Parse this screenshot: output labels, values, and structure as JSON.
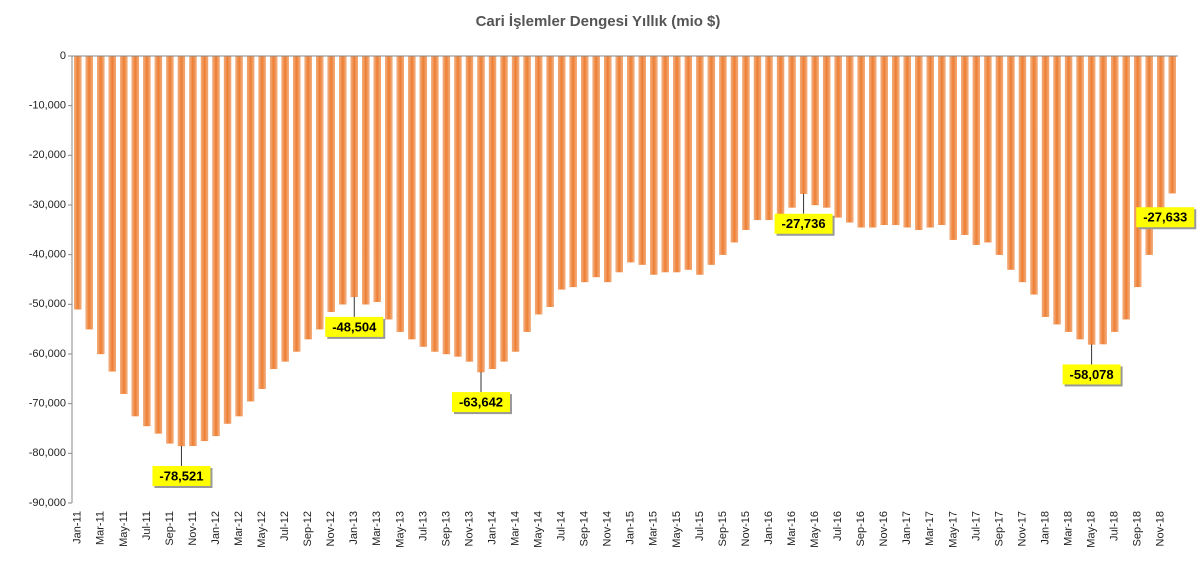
{
  "chart_data": {
    "type": "bar",
    "title": "Cari İşlemler Dengesi Yıllık (mio $)",
    "categories": [
      "Jan-11",
      null,
      "Mar-11",
      null,
      "May-11",
      null,
      "Jul-11",
      null,
      "Sep-11",
      null,
      "Nov-11",
      null,
      "Jan-12",
      null,
      "Mar-12",
      null,
      "May-12",
      null,
      "Jul-12",
      null,
      "Sep-12",
      null,
      "Nov-12",
      null,
      "Jan-13",
      null,
      "Mar-13",
      null,
      "May-13",
      null,
      "Jul-13",
      null,
      "Sep-13",
      null,
      "Nov-13",
      null,
      "Jan-14",
      null,
      "Mar-14",
      null,
      "May-14",
      null,
      "Jul-14",
      null,
      "Sep-14",
      null,
      "Nov-14",
      null,
      "Jan-15",
      null,
      "Mar-15",
      null,
      "May-15",
      null,
      "Jul-15",
      null,
      "Sep-15",
      null,
      "Nov-15",
      null,
      "Jan-16",
      null,
      "Mar-16",
      null,
      "May-16",
      null,
      "Jul-16",
      null,
      "Sep-16",
      null,
      "Nov-16",
      null,
      "Jan-17",
      null,
      "Mar-17",
      null,
      "May-17",
      null,
      "Jul-17",
      null,
      "Sep-17",
      null,
      "Nov-17",
      null,
      "Jan-18",
      null,
      "Mar-18",
      null,
      "May-18",
      null,
      "Jul-18",
      null,
      "Sep-18",
      null,
      "Nov-18",
      null
    ],
    "values": [
      -51000,
      -55000,
      -60000,
      -63500,
      -68000,
      -72500,
      -74500,
      -76000,
      -78000,
      -78521,
      -78500,
      -77500,
      -76500,
      -74000,
      -72500,
      -69500,
      -67000,
      -63000,
      -61500,
      -59500,
      -57000,
      -55000,
      -51500,
      -50000,
      -48504,
      -50000,
      -49500,
      -53000,
      -55500,
      -57000,
      -58500,
      -59500,
      -60000,
      -60500,
      -61500,
      -63642,
      -63000,
      -61500,
      -59500,
      -55500,
      -52000,
      -50500,
      -47000,
      -46500,
      -45500,
      -44500,
      -45500,
      -43500,
      -41500,
      -42000,
      -44000,
      -43500,
      -43500,
      -43000,
      -44000,
      -42000,
      -40000,
      -37500,
      -35000,
      -33000,
      -33000,
      -32500,
      -30500,
      -27736,
      -30000,
      -30500,
      -32500,
      -33500,
      -34500,
      -34500,
      -34000,
      -34000,
      -34500,
      -35000,
      -34500,
      -34000,
      -37000,
      -36000,
      -38000,
      -37500,
      -40000,
      -43000,
      -45500,
      -48000,
      -52500,
      -54000,
      -55500,
      -57000,
      -58078,
      -58000,
      -55500,
      -53000,
      -46500,
      -40000,
      -33500,
      -27633
    ],
    "value_labels": [
      null,
      null,
      null,
      null,
      null,
      null,
      null,
      null,
      null,
      "-78,521",
      null,
      null,
      null,
      null,
      null,
      null,
      null,
      null,
      null,
      null,
      null,
      null,
      null,
      null,
      "-48,504",
      null,
      null,
      null,
      null,
      null,
      null,
      null,
      null,
      null,
      null,
      "-63,642",
      null,
      null,
      null,
      null,
      null,
      null,
      null,
      null,
      null,
      null,
      null,
      null,
      null,
      null,
      null,
      null,
      null,
      null,
      null,
      null,
      null,
      null,
      null,
      null,
      null,
      null,
      null,
      "-27,736",
      null,
      null,
      null,
      null,
      null,
      null,
      null,
      null,
      null,
      null,
      null,
      null,
      null,
      null,
      null,
      null,
      null,
      null,
      null,
      null,
      null,
      null,
      null,
      null,
      "-58,078",
      null,
      null,
      null,
      null,
      null,
      null,
      "-27,633"
    ],
    "color": "#ed7d31",
    "ylim": [
      -90000,
      0
    ],
    "yticks": [
      0,
      {
        "value": -10000,
        "label": "-10,000"
      },
      {
        "value": -20000,
        "label": "-20,000"
      },
      {
        "value": -30000,
        "label": "-30,000"
      },
      {
        "value": -40000,
        "label": "-40,000"
      },
      {
        "value": -50000,
        "label": "-50,000"
      },
      {
        "value": -60000,
        "label": "-60,000"
      },
      {
        "value": -70000,
        "label": "-70,000"
      },
      {
        "value": -80000,
        "label": "-80,000"
      },
      {
        "value": -90000,
        "label": "-90,000"
      }
    ],
    "grid": false
  }
}
